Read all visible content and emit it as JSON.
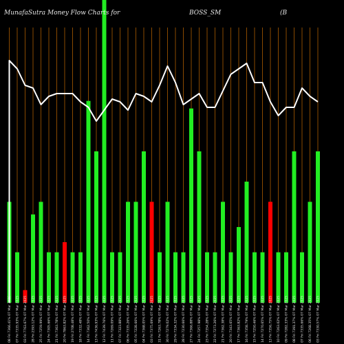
{
  "header": {
    "left": "MunafaSutra  Money Flow  Charts for",
    "center": "BOSS_SM",
    "right": "(B"
  },
  "colors": {
    "background": "#000000",
    "gridline": "#8a4a00",
    "up_bar": "#22ee22",
    "down_bar": "#ff0000",
    "line": "#ffffff",
    "text": "#e8e8e8"
  },
  "chart_data": {
    "type": "bar",
    "title": "BOSS_SM",
    "grid": true,
    "categories": [
      "08 Fri 7366.41% 07 Mar 2025",
      "07 Fri 7335.93% 07 Mar 2025",
      "03 Fri 7763.67% 07 Mar 2025",
      "28 Fri 2393.12% 07 Mar 2025",
      "25 Fri 7259.99% 07 Mar 2025",
      "24 Fri 7305.66% 07 Mar 2025",
      "21 Fri 7363.78% 07 Mar 2025",
      "20 Fri 7863.82% 07 Mar 2025",
      "19 Fri 2708.48% 07 Mar 2025",
      "18 Fri 7332.48% 07 Mar 2025",
      "14 Fri 7362.50% 07 Mar 2025",
      "13 Fri 7436.93% 07 Mar 2025",
      "12 Fri 7439.76% 07 Mar 2025",
      "11 Fri 7269.09% 07 Mar 2025",
      "07 Fri 7323.88% 07 Mar 2025",
      "06 Fri 7335.26% 07 Mar 2025",
      "05 Fri 7228.66% 07 Mar 2025",
      "04 Fri 7368.05% 07 Mar 2025",
      "03 Fri 7375.69% 07 Mar 2025",
      "31 Fri 7263.78% 07 Mar 2025",
      "30 Fri 7279.02% 07 Mar 2025",
      "29 Fri 7334.32% 07 Mar 2025",
      "28 Fri 7230.66% 07 Mar 2025",
      "27 Fri 7366.88% 07 Mar 2025",
      "24 Fri 7257.98% 07 Mar 2025",
      "23 Fri 7354.28% 07 Mar 2025",
      "22 Fri 7273.26% 07 Mar 2025",
      "21 Fri 7362.38% 07 Mar 2025",
      "20 Fri 7343.65% 07 Mar 2025",
      "17 Fri 7363.82% 07 Mar 2025",
      "16 Fri 7358.79% 07 Mar 2025",
      "15 Fri 7250.46% 07 Mar 2025",
      "14 Fri 7270.65% 07 Mar 2025",
      "13 Fri 7356.75% 07 Mar 2025",
      "10 Fri 7263.02% 07 Mar 2025",
      "09 Fri 7282.33% 07 Mar 2025",
      "08 Fri 7391.37% 07 Mar 2025",
      "07 Fri 7335.66% 07 Mar 2025",
      "06 Fri 7268.35% 07 Mar 2025",
      "03 Fri 7330.57% 07 Mar 2025"
    ],
    "series": [
      {
        "type": "bar",
        "values": [
          40,
          20,
          5,
          35,
          40,
          20,
          20,
          24,
          20,
          20,
          80,
          60,
          120,
          20,
          20,
          40,
          40,
          60,
          40,
          20,
          40,
          20,
          20,
          77,
          60,
          20,
          20,
          40,
          20,
          30,
          48,
          20,
          20,
          40,
          20,
          20,
          60,
          20,
          40,
          60
        ],
        "directions": [
          "up",
          "up",
          "down",
          "up",
          "up",
          "up",
          "up",
          "down",
          "up",
          "up",
          "up",
          "up",
          "up",
          "up",
          "up",
          "up",
          "up",
          "up",
          "down",
          "up",
          "up",
          "up",
          "up",
          "up",
          "up",
          "up",
          "up",
          "up",
          "up",
          "up",
          "up",
          "up",
          "up",
          "down",
          "up",
          "up",
          "up",
          "up",
          "up",
          "up"
        ]
      },
      {
        "type": "line",
        "values": [
          88,
          85,
          79,
          78,
          72,
          75,
          76,
          76,
          76,
          73,
          71,
          66,
          70,
          74,
          73,
          70,
          76,
          75,
          73,
          79,
          86,
          80,
          72,
          74,
          76,
          71,
          71,
          77,
          83,
          85,
          87,
          80,
          80,
          73,
          68,
          71,
          71,
          78,
          75,
          73
        ]
      }
    ],
    "ylim": [
      0,
      120
    ],
    "line_ylim": [
      0,
      100
    ]
  }
}
